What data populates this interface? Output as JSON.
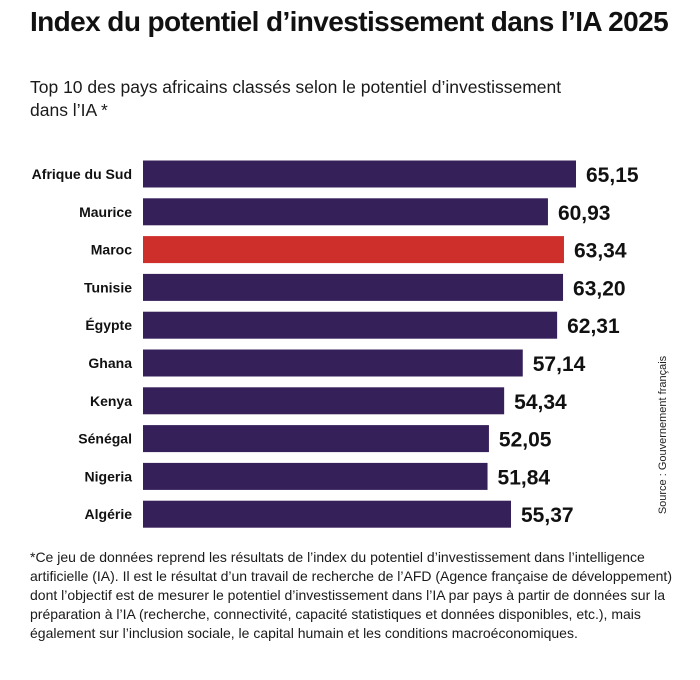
{
  "title": "Index du potentiel d’investissement dans l’IA 2025",
  "subtitle": "Top 10 des pays africains classés selon le potentiel d’investissement dans l’IA *",
  "source": "Source : Gouvernement français",
  "footnote": "*Ce jeu de données reprend les résultats de l’index du potentiel d’investissement dans l’intelligence artificielle (IA). Il est le résultat d’un travail de recherche de l’AFD (Agence française de développement) dont l’objectif est de mesurer le potentiel d’investissement dans l’IA par pays à partir de données sur la préparation à l’IA (recherche, connectivité, capacité statistiques et données disponibles, etc.), mais également sur l’inclusion sociale, le capital humain et les conditions macroéconomiques.",
  "colors": {
    "bar": "#35205a",
    "highlight": "#cf2f2b"
  },
  "chart_data": {
    "type": "bar",
    "orientation": "horizontal",
    "categories": [
      "Afrique du Sud",
      "Maurice",
      "Maroc",
      "Tunisie",
      "Égypte",
      "Ghana",
      "Kenya",
      "Sénégal",
      "Nigeria",
      "Algérie"
    ],
    "values": [
      65.15,
      60.93,
      63.34,
      63.2,
      62.31,
      57.14,
      54.34,
      52.05,
      51.84,
      55.37
    ],
    "value_labels": [
      "65,15",
      "60,93",
      "63,34",
      "63,20",
      "62,31",
      "57,14",
      "54,34",
      "52,05",
      "51,84",
      "55,37"
    ],
    "highlight": "Maroc",
    "title": "Index du potentiel d’investissement dans l’IA 2025",
    "subtitle": "Top 10 des pays africains classés selon le potentiel d’investissement dans l’IA *",
    "xlabel": "",
    "ylabel": "",
    "grid": false,
    "legend": "none"
  }
}
